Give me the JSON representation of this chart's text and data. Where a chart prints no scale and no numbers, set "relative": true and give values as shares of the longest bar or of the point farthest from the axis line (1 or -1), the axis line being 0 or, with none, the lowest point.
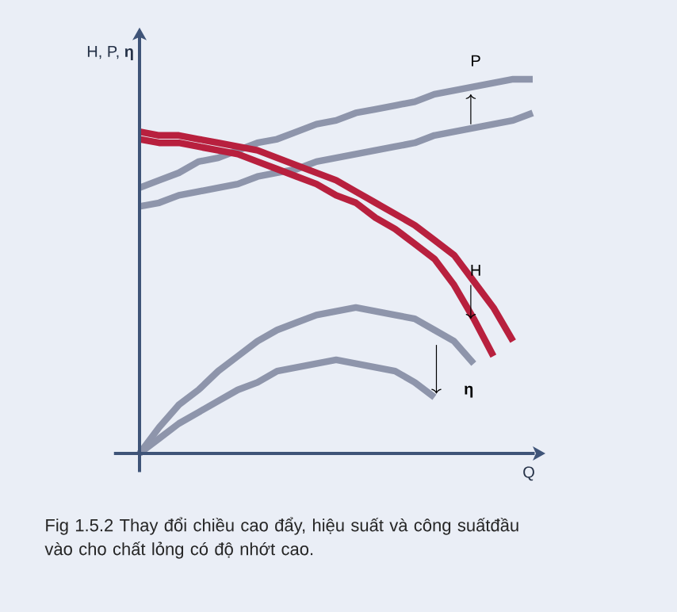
{
  "chart_data": {
    "type": "line",
    "relative": true,
    "xlabel": "Q",
    "ylabel": "H, P, **η**",
    "categories": [
      null,
      null,
      null,
      null,
      null,
      null,
      null,
      null,
      null,
      null,
      null,
      null,
      null,
      null,
      null,
      null,
      null,
      null,
      null,
      null,
      null
    ],
    "series": [
      {
        "color": "#8e95ab",
        "values": [
          0.71,
          0.73,
          0.75,
          0.78,
          0.79,
          0.81,
          0.83,
          0.84,
          0.86,
          0.88,
          0.89,
          0.91,
          0.92,
          0.93,
          0.94,
          0.96,
          0.97,
          0.98,
          0.99,
          1.0,
          1.0
        ]
      },
      {
        "color": "#8e95ab",
        "values": [
          0.66,
          0.67,
          0.69,
          0.7,
          0.71,
          0.72,
          0.74,
          0.75,
          0.76,
          0.78,
          0.79,
          0.8,
          0.81,
          0.82,
          0.83,
          0.85,
          0.86,
          0.87,
          0.88,
          0.89,
          0.91
        ]
      },
      {
        "color": "#b8203e",
        "values": [
          0.86,
          0.85,
          0.85,
          0.84,
          0.83,
          0.82,
          0.81,
          0.79,
          0.77,
          0.75,
          0.73,
          0.7,
          0.67,
          0.64,
          0.61,
          0.57,
          0.53,
          0.46,
          0.39,
          0.3,
          null
        ]
      },
      {
        "color": "#b8203e",
        "values": [
          0.84,
          0.83,
          0.83,
          0.82,
          0.81,
          0.8,
          0.78,
          0.76,
          0.74,
          0.72,
          0.69,
          0.67,
          0.63,
          0.6,
          0.56,
          0.52,
          0.45,
          0.36,
          0.26,
          null,
          null
        ]
      },
      {
        "color": "#8e95ab",
        "values": [
          0,
          0.07,
          0.13,
          0.17,
          0.22,
          0.26,
          0.3,
          0.33,
          0.35,
          0.37,
          0.38,
          0.39,
          0.38,
          0.37,
          0.36,
          0.33,
          0.3,
          0.24,
          null,
          null,
          null
        ]
      },
      {
        "color": "#8e95ab",
        "values": [
          0,
          0.04,
          0.08,
          0.11,
          0.14,
          0.17,
          0.19,
          0.22,
          0.23,
          0.24,
          0.25,
          0.24,
          0.23,
          0.22,
          0.19,
          0.15,
          null,
          null,
          null,
          null,
          null
        ]
      }
    ],
    "annotations": [
      "P",
      "H",
      "**η**",
      "Fig 1.5.2 Thay đổi chiều cao đẩy, hiệu suất và công suấtđầu vào cho chất lỏng có độ nhớt cao."
    ]
  }
}
